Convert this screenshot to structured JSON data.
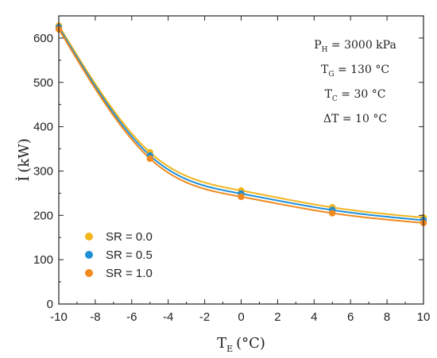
{
  "chart_data": {
    "type": "scatter",
    "title": "",
    "xlabel": {
      "main": "T",
      "sub": "E",
      "unit": "(°C)"
    },
    "ylabel": {
      "main": "İ",
      "unit": "(kW)"
    },
    "xlim": [
      -10,
      10
    ],
    "ylim": [
      0,
      650
    ],
    "xticks": [
      -10,
      -8,
      -6,
      -4,
      -2,
      0,
      2,
      4,
      6,
      8,
      10
    ],
    "yticks": [
      0,
      100,
      200,
      300,
      400,
      500,
      600
    ],
    "xtick_labels": [
      "-10",
      "-8",
      "-6",
      "-4",
      "-2",
      "0",
      "2",
      "4",
      "6",
      "8",
      "10"
    ],
    "ytick_labels": [
      "0",
      "100",
      "200",
      "300",
      "400",
      "500",
      "600"
    ],
    "grid": false,
    "legend_position": "bottom-left",
    "annotations": [
      {
        "main": "P",
        "sub": "H",
        "rest": " = 3000 kPa"
      },
      {
        "main": "T",
        "sub": "G",
        "rest": " = 130 °C"
      },
      {
        "main": "T",
        "sub": "C",
        "rest": " = 30 °C"
      },
      {
        "main": "ΔT",
        "sub": "",
        "rest": " = 10 °C"
      }
    ],
    "x": [
      -10,
      -5,
      0,
      5,
      10
    ],
    "series": [
      {
        "name": "SR = 0.0",
        "color": "#f2b51c",
        "values": [
          628,
          342,
          256,
          218,
          195
        ]
      },
      {
        "name": "SR = 0.5",
        "color": "#1f8fd6",
        "values": [
          624,
          335,
          249,
          212,
          189
        ]
      },
      {
        "name": "SR = 1.0",
        "color": "#f28a1e",
        "values": [
          620,
          328,
          242,
          205,
          183
        ]
      }
    ]
  }
}
